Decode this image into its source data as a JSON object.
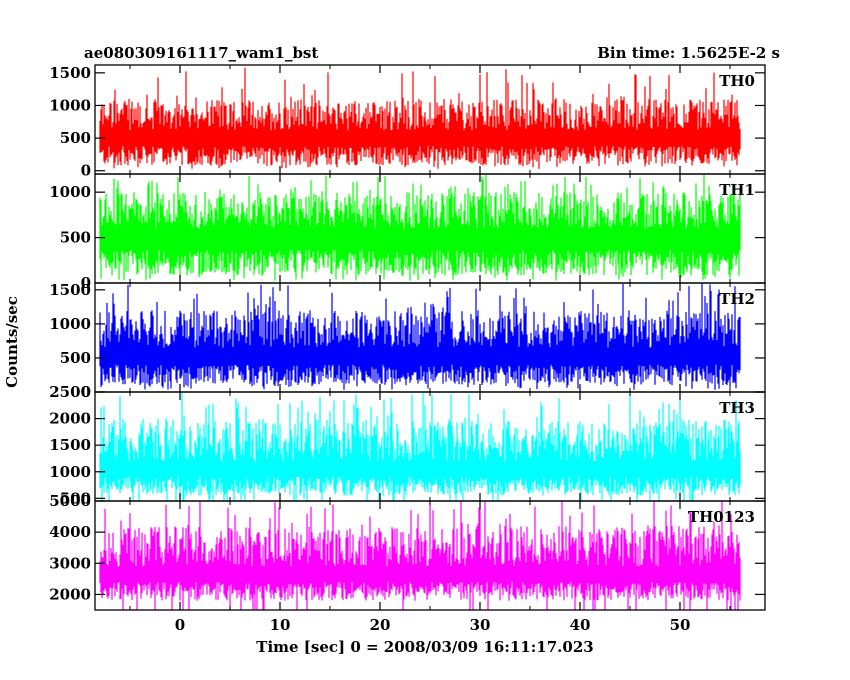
{
  "chart_data": {
    "type": "line",
    "title": "ae080309161117_wam1_bst",
    "subtitle": "Bin time: 1.5625E-2 s",
    "xlabel": "Time [sec] 0 = 2008/03/09 16:11:17.023",
    "ylabel": "Counts/sec",
    "xlim": [
      -8.5,
      58.5
    ],
    "data_range": [
      -8,
      56
    ],
    "bin_time": 0.015625,
    "xticks": [
      0,
      10,
      20,
      30,
      40,
      50
    ],
    "grid": false,
    "panels": [
      {
        "name": "TH0",
        "color": "#ff0000",
        "ylim": [
          -50,
          1620
        ],
        "yticks": [
          0,
          500,
          1000,
          1500
        ],
        "baseline": 620,
        "low": 80,
        "high": 1100,
        "peak": 1600
      },
      {
        "name": "TH1",
        "color": "#00ff00",
        "ylim": [
          0,
          1200
        ],
        "yticks": [
          0,
          500,
          1000
        ],
        "baseline": 600,
        "low": 80,
        "high": 1000,
        "peak": 1200
      },
      {
        "name": "TH2",
        "color": "#0000ff",
        "ylim": [
          0,
          1600
        ],
        "yticks": [
          0,
          500,
          1000,
          1500
        ],
        "baseline": 650,
        "low": 100,
        "high": 1200,
        "peak": 1600
      },
      {
        "name": "TH3",
        "color": "#00ffff",
        "ylim": [
          450,
          2500
        ],
        "yticks": [
          500,
          1000,
          1500,
          2000,
          2500
        ],
        "baseline": 1200,
        "low": 550,
        "high": 2000,
        "peak": 2500
      },
      {
        "name": "TH0123",
        "color": "#ff00ff",
        "ylim": [
          1500,
          5000
        ],
        "yticks": [
          2000,
          3000,
          4000,
          5000
        ],
        "baseline": 2900,
        "low": 1800,
        "high": 4200,
        "peak": 5000
      }
    ]
  }
}
